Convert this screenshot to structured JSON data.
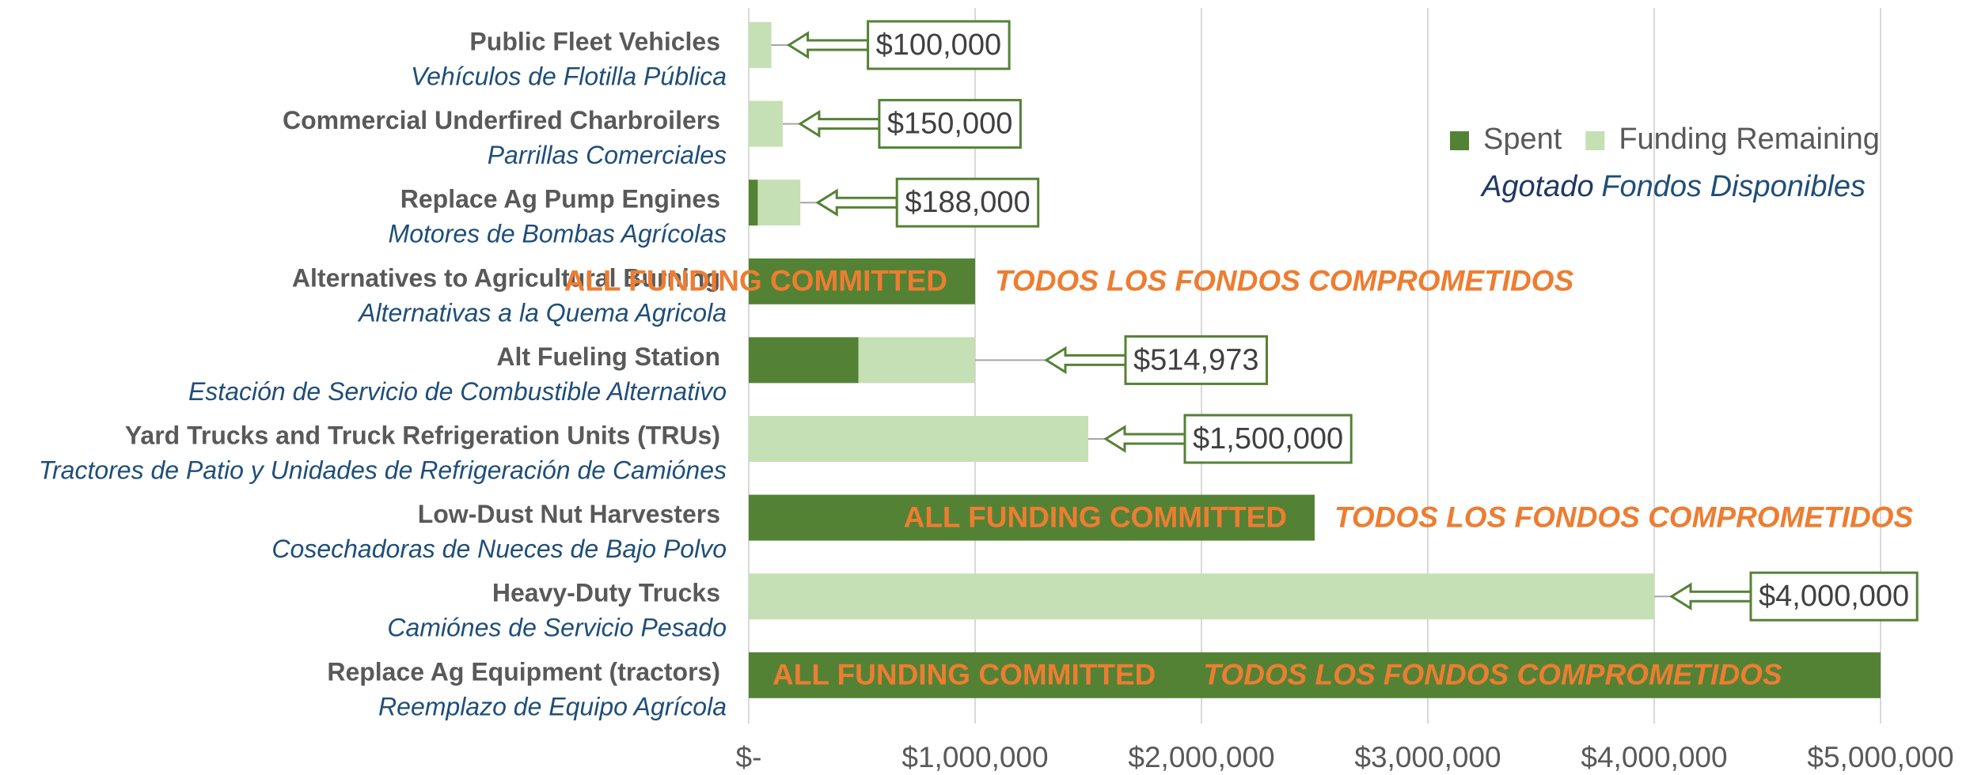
{
  "chart_data": {
    "type": "stacked_barh",
    "categories": [
      "Public Fleet Vehicles",
      "Commercial Underfired Charbroilers",
      "Replace Ag Pump Engines",
      "Alternatives to Agricultural Burning",
      "Alt Fueling Station",
      "Yard Trucks and Truck Refrigeration Units (TRUs)",
      "Low-Dust Nut Harvesters",
      "Heavy-Duty Trucks",
      "Replace Ag Equipment (tractors)"
    ],
    "categories_es": [
      "Vehículos de Flotilla Pública",
      "Parrillas Comerciales",
      "Motores de Bombas Agrícolas",
      "Alternativas a la Quema Agricola",
      "Estación de Servicio de Combustible Alternativo",
      "Tractores de Patio y Unidades de Refrigeración de Camiónes",
      "Cosechadoras de Nueces de Bajo Polvo",
      "Camiónes de Servicio Pesado",
      "Reemplazo de Equipo Agrícola"
    ],
    "series": [
      {
        "name": "Spent",
        "name_es": "Agotado",
        "color": "#548235",
        "values": [
          0,
          0,
          40000,
          1000000,
          485027,
          0,
          2500000,
          0,
          5000000
        ]
      },
      {
        "name": "Funding Remaining",
        "name_es": "Fondos Disponibles",
        "color": "#c5e0b4",
        "values": [
          100000,
          150000,
          188000,
          0,
          514973,
          1500000,
          0,
          4000000,
          0
        ],
        "value_labels": [
          "$100,000",
          "$150,000",
          "$188,000",
          null,
          "$514,973",
          "$1,500,000",
          null,
          "$4,000,000",
          null
        ]
      }
    ],
    "annotations": [
      {
        "category": "Alternatives to Agricultural Burning",
        "text": "ALL FUNDING COMMITTED",
        "text_es": "TODOS LOS FONDOS COMPROMETIDOS"
      },
      {
        "category": "Low-Dust Nut Harvesters",
        "text": "ALL FUNDING COMMITTED",
        "text_es": "TODOS LOS FONDOS COMPROMETIDOS"
      },
      {
        "category": "Replace Ag Equipment (tractors)",
        "text": "ALL FUNDING COMMITTED",
        "text_es": "TODOS LOS FONDOS COMPROMETIDOS"
      }
    ],
    "xlim": [
      0,
      5000000
    ],
    "xticks": [
      {
        "value": 0,
        "label": "$-"
      },
      {
        "value": 1000000,
        "label": "$1,000,000"
      },
      {
        "value": 2000000,
        "label": "$2,000,000"
      },
      {
        "value": 3000000,
        "label": "$3,000,000"
      },
      {
        "value": 4000000,
        "label": "$4,000,000"
      },
      {
        "value": 5000000,
        "label": "$5,000,000"
      }
    ],
    "grid": true,
    "legend": "upper right"
  }
}
